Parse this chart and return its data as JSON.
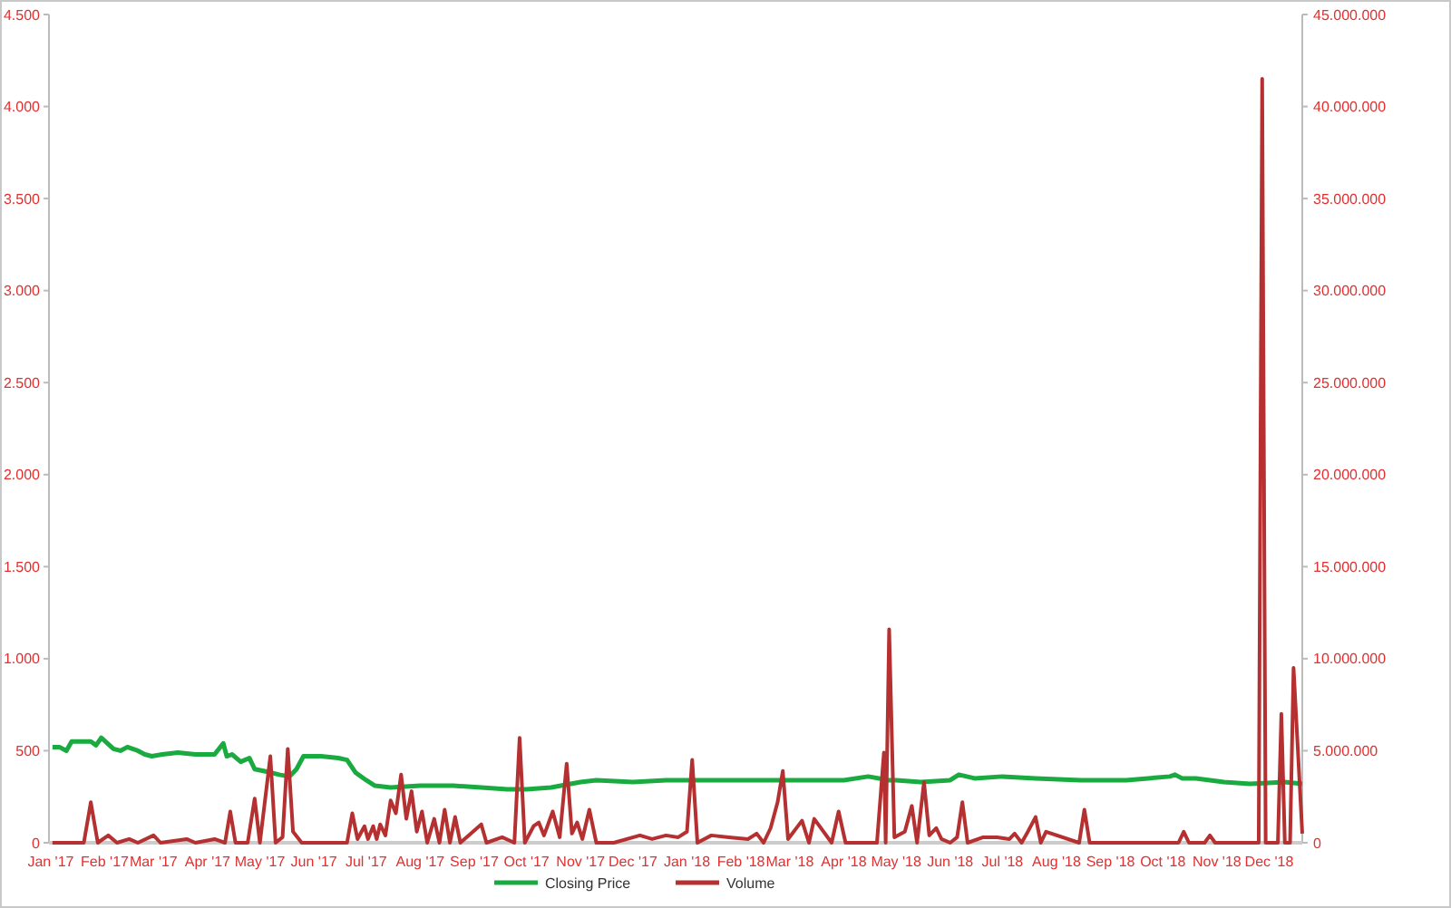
{
  "chart_data": {
    "type": "line",
    "legend": "bottom",
    "grid": false,
    "xlim": [
      "2016-12-31",
      "2018-12-20"
    ],
    "xticks": [
      {
        "value": "2017-01-01",
        "label": "Jan '17"
      },
      {
        "value": "2017-02-01",
        "label": "Feb '17"
      },
      {
        "value": "2017-03-01",
        "label": "Mar '17"
      },
      {
        "value": "2017-04-01",
        "label": "Apr '17"
      },
      {
        "value": "2017-05-01",
        "label": "May '17"
      },
      {
        "value": "2017-06-01",
        "label": "Jun '17"
      },
      {
        "value": "2017-07-01",
        "label": "Jul '17"
      },
      {
        "value": "2017-08-01",
        "label": "Aug '17"
      },
      {
        "value": "2017-09-01",
        "label": "Sep '17"
      },
      {
        "value": "2017-10-01",
        "label": "Oct '17"
      },
      {
        "value": "2017-11-01",
        "label": "Nov '17"
      },
      {
        "value": "2017-12-01",
        "label": "Dec '17"
      },
      {
        "value": "2018-01-01",
        "label": "Jan '18"
      },
      {
        "value": "2018-02-01",
        "label": "Feb '18"
      },
      {
        "value": "2018-03-01",
        "label": "Mar '18"
      },
      {
        "value": "2018-04-01",
        "label": "Apr '18"
      },
      {
        "value": "2018-05-01",
        "label": "May '18"
      },
      {
        "value": "2018-06-01",
        "label": "Jun '18"
      },
      {
        "value": "2018-07-01",
        "label": "Jul '18"
      },
      {
        "value": "2018-08-01",
        "label": "Aug '18"
      },
      {
        "value": "2018-09-01",
        "label": "Sep '18"
      },
      {
        "value": "2018-10-01",
        "label": "Oct '18"
      },
      {
        "value": "2018-11-01",
        "label": "Nov '18"
      },
      {
        "value": "2018-12-01",
        "label": "Dec '18"
      }
    ],
    "ylim": [
      0,
      4500
    ],
    "yticks": [
      {
        "value": 0,
        "label": "0"
      },
      {
        "value": 500,
        "label": "500"
      },
      {
        "value": 1000,
        "label": "1.000"
      },
      {
        "value": 1500,
        "label": "1.500"
      },
      {
        "value": 2000,
        "label": "2.000"
      },
      {
        "value": 2500,
        "label": "2.500"
      },
      {
        "value": 3000,
        "label": "3.000"
      },
      {
        "value": 3500,
        "label": "3.500"
      },
      {
        "value": 4000,
        "label": "4.000"
      },
      {
        "value": 4500,
        "label": "4.500"
      }
    ],
    "y2lim": [
      0,
      45000000
    ],
    "y2ticks": [
      {
        "value": 0,
        "label": "0"
      },
      {
        "value": 5000000,
        "label": "5.000.000"
      },
      {
        "value": 10000000,
        "label": "10.000.000"
      },
      {
        "value": 15000000,
        "label": "15.000.000"
      },
      {
        "value": 20000000,
        "label": "20.000.000"
      },
      {
        "value": 25000000,
        "label": "25.000.000"
      },
      {
        "value": 30000000,
        "label": "30.000.000"
      },
      {
        "value": 35000000,
        "label": "35.000.000"
      },
      {
        "value": 40000000,
        "label": "40.000.000"
      },
      {
        "value": 45000000,
        "label": "45.000.000"
      }
    ],
    "series": [
      {
        "name": "Closing Price",
        "color": "#1aab40",
        "x": [
          "2017-01-02",
          "2017-01-06",
          "2017-01-10",
          "2017-01-13",
          "2017-01-20",
          "2017-01-24",
          "2017-01-27",
          "2017-01-30",
          "2017-02-06",
          "2017-02-10",
          "2017-02-14",
          "2017-02-20",
          "2017-02-24",
          "2017-02-28",
          "2017-03-06",
          "2017-03-15",
          "2017-03-25",
          "2017-04-05",
          "2017-04-10",
          "2017-04-12",
          "2017-04-15",
          "2017-04-20",
          "2017-04-25",
          "2017-04-28",
          "2017-05-03",
          "2017-05-08",
          "2017-05-12",
          "2017-05-18",
          "2017-05-22",
          "2017-05-26",
          "2017-06-05",
          "2017-06-15",
          "2017-06-20",
          "2017-06-25",
          "2017-07-01",
          "2017-07-06",
          "2017-07-15",
          "2017-08-01",
          "2017-08-20",
          "2017-09-05",
          "2017-09-20",
          "2017-10-01",
          "2017-10-15",
          "2017-11-01",
          "2017-11-10",
          "2017-12-01",
          "2017-12-20",
          "2018-01-05",
          "2018-02-01",
          "2018-03-01",
          "2018-04-01",
          "2018-04-15",
          "2018-04-27",
          "2018-05-01",
          "2018-05-15",
          "2018-06-01",
          "2018-06-06",
          "2018-06-15",
          "2018-07-01",
          "2018-07-20",
          "2018-08-15",
          "2018-09-10",
          "2018-10-05",
          "2018-10-08",
          "2018-10-12",
          "2018-10-20",
          "2018-11-05",
          "2018-11-20",
          "2018-12-10",
          "2018-12-20"
        ],
        "values": [
          520,
          520,
          500,
          550,
          550,
          550,
          530,
          570,
          510,
          500,
          520,
          500,
          480,
          470,
          480,
          490,
          480,
          480,
          540,
          470,
          480,
          440,
          460,
          400,
          390,
          380,
          370,
          360,
          400,
          470,
          470,
          460,
          450,
          380,
          340,
          310,
          300,
          310,
          310,
          300,
          290,
          290,
          300,
          330,
          340,
          330,
          340,
          340,
          340,
          340,
          340,
          360,
          340,
          340,
          330,
          340,
          370,
          350,
          360,
          350,
          340,
          340,
          360,
          370,
          350,
          350,
          330,
          320,
          330,
          320
        ]
      },
      {
        "name": "Volume",
        "color": "#b53030",
        "axis": "y2",
        "x": [
          "2017-01-02",
          "2017-01-20",
          "2017-01-24",
          "2017-01-28",
          "2017-02-03",
          "2017-02-08",
          "2017-02-15",
          "2017-02-20",
          "2017-03-01",
          "2017-03-05",
          "2017-03-20",
          "2017-03-25",
          "2017-04-05",
          "2017-04-11",
          "2017-04-14",
          "2017-04-17",
          "2017-04-24",
          "2017-04-28",
          "2017-05-01",
          "2017-05-07",
          "2017-05-10",
          "2017-05-14",
          "2017-05-17",
          "2017-05-20",
          "2017-05-25",
          "2017-06-20",
          "2017-06-23",
          "2017-06-26",
          "2017-06-30",
          "2017-07-02",
          "2017-07-05",
          "2017-07-07",
          "2017-07-09",
          "2017-07-12",
          "2017-07-15",
          "2017-07-18",
          "2017-07-21",
          "2017-07-24",
          "2017-07-27",
          "2017-07-30",
          "2017-08-02",
          "2017-08-05",
          "2017-08-09",
          "2017-08-12",
          "2017-08-15",
          "2017-08-18",
          "2017-08-21",
          "2017-08-24",
          "2017-09-05",
          "2017-09-08",
          "2017-09-17",
          "2017-09-24",
          "2017-09-27",
          "2017-09-30",
          "2017-10-05",
          "2017-10-08",
          "2017-10-11",
          "2017-10-16",
          "2017-10-20",
          "2017-10-24",
          "2017-10-27",
          "2017-10-30",
          "2017-11-02",
          "2017-11-06",
          "2017-11-10",
          "2017-11-20",
          "2017-12-05",
          "2017-12-12",
          "2017-12-20",
          "2017-12-27",
          "2018-01-01",
          "2018-01-04",
          "2018-01-07",
          "2018-01-15",
          "2018-01-25",
          "2018-02-05",
          "2018-02-10",
          "2018-02-14",
          "2018-02-18",
          "2018-02-22",
          "2018-02-25",
          "2018-02-28",
          "2018-03-08",
          "2018-03-12",
          "2018-03-15",
          "2018-03-25",
          "2018-03-29",
          "2018-04-02",
          "2018-04-20",
          "2018-04-24",
          "2018-04-25",
          "2018-04-27",
          "2018-04-30",
          "2018-05-06",
          "2018-05-10",
          "2018-05-13",
          "2018-05-17",
          "2018-05-20",
          "2018-05-24",
          "2018-05-27",
          "2018-06-01",
          "2018-06-05",
          "2018-06-08",
          "2018-06-11",
          "2018-06-20",
          "2018-06-28",
          "2018-07-05",
          "2018-07-08",
          "2018-07-12",
          "2018-07-15",
          "2018-07-20",
          "2018-07-23",
          "2018-07-26",
          "2018-08-14",
          "2018-08-17",
          "2018-08-20",
          "2018-10-10",
          "2018-10-13",
          "2018-10-16",
          "2018-10-25",
          "2018-10-28",
          "2018-10-31",
          "2018-11-25",
          "2018-11-27",
          "2018-11-29",
          "2018-12-06",
          "2018-12-08",
          "2018-12-10",
          "2018-12-13",
          "2018-12-15",
          "2018-12-20"
        ],
        "values": [
          0,
          0,
          2200000,
          0,
          400000,
          0,
          200000,
          0,
          400000,
          0,
          200000,
          0,
          200000,
          0,
          1700000,
          0,
          0,
          2400000,
          0,
          4700000,
          0,
          300000,
          5100000,
          600000,
          0,
          0,
          1600000,
          200000,
          900000,
          200000,
          900000,
          200000,
          1000000,
          400000,
          2300000,
          1600000,
          3700000,
          1300000,
          2800000,
          600000,
          1700000,
          0,
          1300000,
          0,
          1800000,
          0,
          1400000,
          0,
          1000000,
          0,
          300000,
          0,
          5700000,
          0,
          900000,
          1100000,
          400000,
          1700000,
          300000,
          4300000,
          500000,
          1100000,
          200000,
          1800000,
          0,
          0,
          400000,
          200000,
          400000,
          300000,
          600000,
          4500000,
          0,
          400000,
          300000,
          200000,
          500000,
          0,
          800000,
          2200000,
          3900000,
          200000,
          1200000,
          0,
          1300000,
          0,
          1700000,
          0,
          0,
          4900000,
          0,
          11600000,
          300000,
          600000,
          2000000,
          0,
          3300000,
          400000,
          800000,
          200000,
          0,
          300000,
          2200000,
          0,
          300000,
          300000,
          200000,
          500000,
          0,
          500000,
          1400000,
          0,
          600000,
          0,
          1800000,
          0,
          0,
          600000,
          0,
          0,
          400000,
          0,
          0,
          41500000,
          0,
          0,
          7000000,
          0,
          0,
          9500000,
          500000
        ]
      }
    ]
  }
}
